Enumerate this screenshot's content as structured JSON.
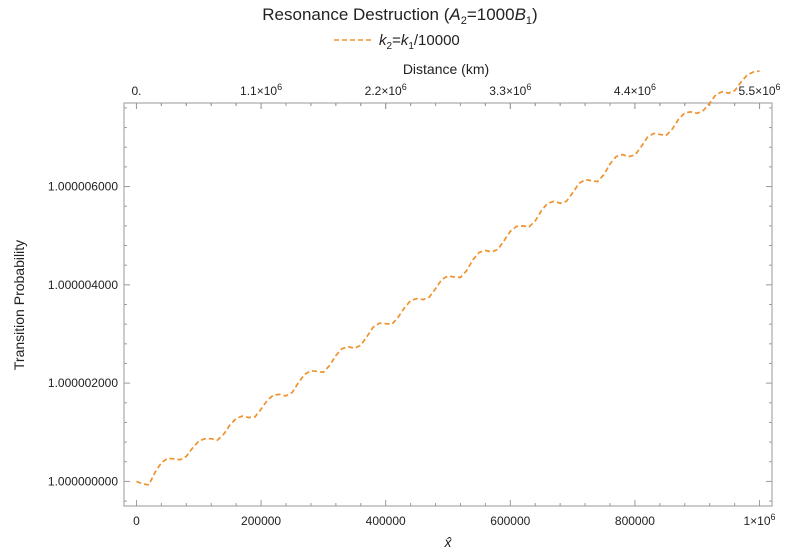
{
  "chart_data": {
    "type": "line",
    "title": "Resonance Destruction (A2=1000B1)",
    "title_parts": {
      "prefix": "Resonance Destruction (",
      "a": "A",
      "a_sub": "2",
      "mid": "=1000",
      "b": "B",
      "b_sub": "1",
      "suffix": ")"
    },
    "legend": {
      "label": "k2=k1/10000",
      "parts": {
        "k": "k",
        "sub2": "2",
        "eq": "=",
        "k1": "k",
        "sub1": "1",
        "rest": "/10000"
      },
      "placement": "top-center"
    },
    "xlabel": "x̂",
    "ylabel": "Transition Probability",
    "x2label": "Distance (km)",
    "xlim": [
      -20000,
      1020000
    ],
    "ylim": [
      0.9999995,
      1.0000077
    ],
    "x_ticks": [
      {
        "value": 0,
        "label": "0"
      },
      {
        "value": 200000,
        "label": "200000"
      },
      {
        "value": 400000,
        "label": "400000"
      },
      {
        "value": 600000,
        "label": "600000"
      },
      {
        "value": 800000,
        "label": "800000"
      },
      {
        "value": 1000000,
        "label_main": "1×10",
        "label_exp": "6"
      }
    ],
    "y_ticks": [
      {
        "value": 1.0,
        "label": "1.000000000"
      },
      {
        "value": 1.000002,
        "label": "1.000002000"
      },
      {
        "value": 1.000004,
        "label": "1.000004000"
      },
      {
        "value": 1.000006,
        "label": "1.000006000"
      }
    ],
    "top_ticks": [
      {
        "km": 0,
        "label_main": "0.",
        "label_exp": ""
      },
      {
        "km": 1100000,
        "label_main": "1.1×10",
        "label_exp": "6"
      },
      {
        "km": 2200000,
        "label_main": "2.2×10",
        "label_exp": "6"
      },
      {
        "km": 3300000,
        "label_main": "3.3×10",
        "label_exp": "6"
      },
      {
        "km": 4400000,
        "label_main": "4.4×10",
        "label_exp": "6"
      },
      {
        "km": 5500000,
        "label_main": "5.5×10",
        "label_exp": "6"
      }
    ],
    "km_per_x": 5.5,
    "series": [
      {
        "name": "k2=k1/10000",
        "color": "#f0922b",
        "dash": "dashed",
        "x": [
          0,
          10000,
          20000,
          30000,
          40000,
          50000,
          60000,
          70000,
          80000,
          90000,
          100000,
          110000,
          120000,
          130000,
          140000,
          150000,
          160000,
          170000,
          180000,
          190000,
          200000,
          210000,
          220000,
          230000,
          240000,
          250000,
          260000,
          270000,
          280000,
          290000,
          300000,
          310000,
          320000,
          330000,
          340000,
          350000,
          360000,
          370000,
          380000,
          390000,
          400000,
          410000,
          420000,
          430000,
          440000,
          450000,
          460000,
          470000,
          480000,
          490000,
          500000,
          510000,
          520000,
          530000,
          540000,
          550000,
          560000,
          570000,
          580000,
          590000,
          600000,
          610000,
          620000,
          630000,
          640000,
          650000,
          660000,
          670000,
          680000,
          690000,
          700000,
          710000,
          720000,
          730000,
          740000,
          750000,
          760000,
          770000,
          780000,
          790000,
          800000,
          810000,
          820000,
          830000,
          840000,
          850000,
          860000,
          870000,
          880000,
          890000,
          900000,
          910000,
          920000,
          930000,
          940000,
          950000,
          960000,
          970000,
          980000,
          990000,
          1000000
        ],
        "y": [
          1.0,
          0.99999995,
          0.99999993,
          1.00000019,
          1.00000038,
          1.00000047,
          1.00000046,
          1.00000044,
          1.00000051,
          1.00000068,
          1.00000082,
          1.00000087,
          1.00000087,
          1.00000084,
          1.00000096,
          1.00000115,
          1.00000128,
          1.00000133,
          1.0000013,
          1.00000131,
          1.00000147,
          1.00000165,
          1.00000176,
          1.00000177,
          1.00000174,
          1.00000181,
          1.00000201,
          1.00000218,
          1.00000225,
          1.00000224,
          1.00000222,
          1.00000236,
          1.00000256,
          1.0000027,
          1.00000274,
          1.00000271,
          1.00000277,
          1.00000295,
          1.00000314,
          1.00000322,
          1.00000321,
          1.0000032,
          1.00000334,
          1.00000353,
          1.00000368,
          1.00000372,
          1.0000037,
          1.00000375,
          1.00000392,
          1.00000411,
          1.00000418,
          1.00000416,
          1.00000415,
          1.00000429,
          1.00000451,
          1.00000466,
          1.0000047,
          1.00000467,
          1.00000472,
          1.0000049,
          1.00000509,
          1.00000519,
          1.0000052,
          1.00000518,
          1.0000053,
          1.00000551,
          1.00000566,
          1.0000057,
          1.00000566,
          1.0000057,
          1.00000587,
          1.00000606,
          1.00000614,
          1.00000612,
          1.0000061,
          1.00000624,
          1.00000646,
          1.00000661,
          1.00000665,
          1.00000661,
          1.00000664,
          1.00000681,
          1.000007,
          1.00000708,
          1.00000706,
          1.00000704,
          1.00000717,
          1.00000737,
          1.0000075,
          1.00000752,
          1.00000749,
          1.00000755,
          1.0000077,
          1.00000787,
          1.00000793,
          1.0000079,
          1.00000795,
          1.00000812,
          1.00000827,
          1.00000833,
          1.00000835
        ]
      }
    ],
    "grid": false,
    "frame": true
  }
}
